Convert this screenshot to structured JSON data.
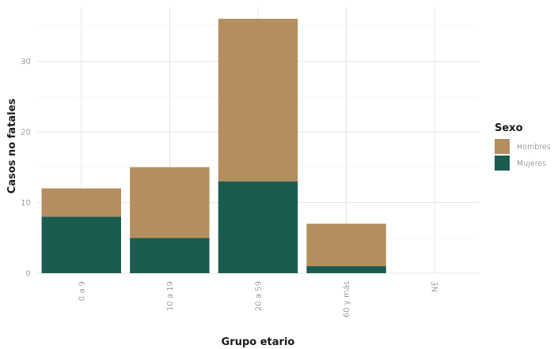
{
  "chart_data": {
    "type": "bar",
    "stacked": true,
    "xlabel": "Grupo etario",
    "ylabel": "Casos no fatales",
    "categories": [
      "0 a 9",
      "10 a 19",
      "20 a 59",
      "60 y más",
      "NE"
    ],
    "ylim": [
      0,
      37
    ],
    "yticks": [
      0,
      10,
      20,
      30
    ],
    "grid": true,
    "legend": {
      "title": "Sexo",
      "position": "right"
    },
    "series": [
      {
        "name": "Mujeres",
        "color": "#1b5c50",
        "values": [
          8,
          5,
          13,
          1,
          0
        ]
      },
      {
        "name": "Hombres",
        "color": "#b48e5e",
        "values": [
          4,
          10,
          23,
          6,
          0
        ]
      }
    ],
    "legend_order": [
      "Hombres",
      "Mujeres"
    ]
  }
}
